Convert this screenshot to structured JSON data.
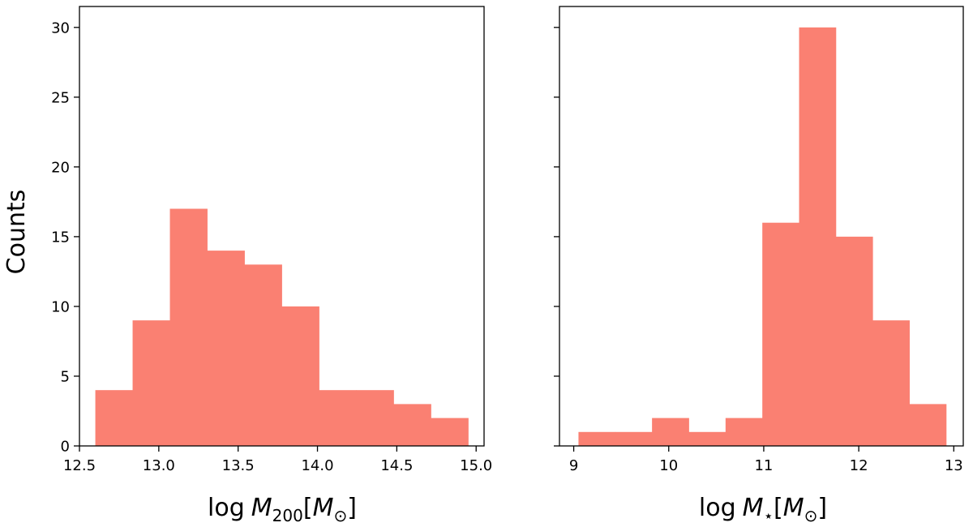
{
  "colors": {
    "bar": "#fa8072",
    "axes": "#000000",
    "background": "#ffffff"
  },
  "chart_data": [
    {
      "type": "bar",
      "title": "",
      "ylabel": "Counts",
      "xlabel_parts": {
        "prefix": "log",
        "var": "M",
        "sub": "200",
        "unit_var": "M",
        "unit_sub": "⊙"
      },
      "xlim": [
        12.5,
        15.05
      ],
      "ylim": [
        0,
        31.5
      ],
      "xticks": [
        "12.5",
        "13.0",
        "13.5",
        "14.0",
        "14.5",
        "15.0"
      ],
      "yticks": [
        "0",
        "5",
        "10",
        "15",
        "20",
        "25",
        "30"
      ],
      "bin_edges": [
        12.6,
        12.835,
        13.07,
        13.305,
        13.54,
        13.775,
        14.01,
        14.245,
        14.48,
        14.715,
        14.95
      ],
      "values": [
        4,
        9,
        17,
        14,
        13,
        10,
        4,
        4,
        3,
        2
      ]
    },
    {
      "type": "bar",
      "title": "",
      "ylabel": "",
      "xlabel_parts": {
        "prefix": "log",
        "var": "M",
        "sub": "⋆",
        "unit_var": "M",
        "unit_sub": "⊙"
      },
      "xlim": [
        8.85,
        13.1
      ],
      "ylim": [
        0,
        31.5
      ],
      "xticks": [
        "9",
        "10",
        "11",
        "12",
        "13"
      ],
      "yticks": [
        "0",
        "5",
        "10",
        "15",
        "20",
        "25",
        "30"
      ],
      "bin_edges": [
        9.05,
        9.437,
        9.824,
        10.211,
        10.598,
        10.985,
        11.372,
        11.759,
        12.146,
        12.533,
        12.92
      ],
      "values": [
        1,
        1,
        2,
        1,
        2,
        16,
        30,
        15,
        9,
        3
      ]
    }
  ]
}
